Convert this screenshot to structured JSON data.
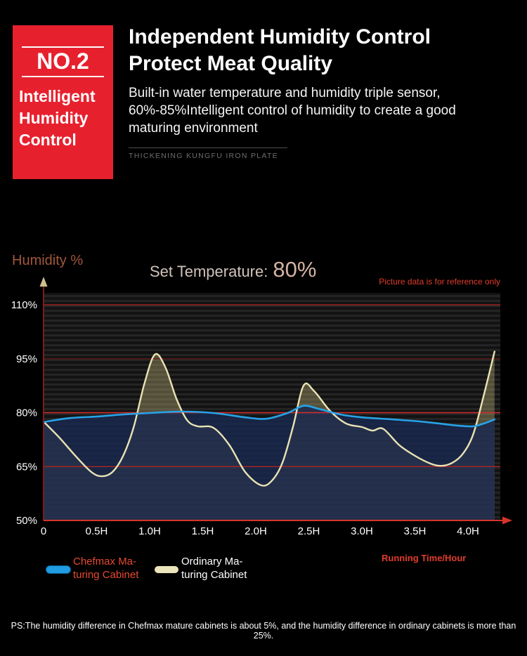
{
  "badge": {
    "number": "NO.2",
    "title_lines": [
      "Intelligent",
      "Humidity",
      "Control"
    ],
    "color": "#e7202e"
  },
  "header": {
    "title_line1": "Independent Humidity Control",
    "title_line2": "Protect Meat Quality",
    "body_lines": [
      "Built-in water temperature and humidity triple sensor,",
      "60%-85%Intelligent control of humidity to create a good",
      "maturing environment"
    ],
    "caption": "THICKENING KUNGFU IRON PLATE"
  },
  "chart_labels": {
    "y_axis_title": "Humidity %",
    "set_temp_label": "Set Temperature:",
    "set_temp_value": "80%",
    "disclaimer": "Picture data is for reference only",
    "x_axis_title": "Running Time/Hour"
  },
  "legend": {
    "chefmax_line1": "Chefmax Ma-",
    "chefmax_line2": "turing Cabinet",
    "ordinary_line1": "Ordinary Ma-",
    "ordinary_line2": "turing Cabinet"
  },
  "footnote": "PS:The humidity difference in Chefmax mature cabinets is about 5%, and the humidity difference in ordinary cabinets is more than 25%.",
  "chart_data": {
    "type": "line",
    "title": "Set Temperature: 80%",
    "xlabel": "Running Time/Hour",
    "ylabel": "Humidity %",
    "xlim": [
      0,
      4.3
    ],
    "ylim": [
      50,
      115
    ],
    "grid": "horizontal red lines over dark striped background",
    "legend_position": "bottom",
    "yticks": [
      {
        "value": 110,
        "label": "110%"
      },
      {
        "value": 95,
        "label": "95%"
      },
      {
        "value": 80,
        "label": "80%"
      },
      {
        "value": 65,
        "label": "65%"
      },
      {
        "value": 50,
        "label": "50%"
      }
    ],
    "xticks": [
      {
        "value": 0,
        "label": "0"
      },
      {
        "value": 0.5,
        "label": "0.5H"
      },
      {
        "value": 1,
        "label": "1.0H"
      },
      {
        "value": 1.5,
        "label": "1.5H"
      },
      {
        "value": 2,
        "label": "2.0H"
      },
      {
        "value": 2.5,
        "label": "2.5H"
      },
      {
        "value": 3,
        "label": "3.0H"
      },
      {
        "value": 3.5,
        "label": "3.5H"
      },
      {
        "value": 4,
        "label": "4.0H"
      }
    ],
    "gridlines": [
      {
        "value": 110,
        "color": "#9e2323",
        "width": 1.4
      },
      {
        "value": 95,
        "color": "#711919",
        "width": 1.2
      },
      {
        "value": 80,
        "color": "#d92b2b",
        "width": 1.6
      },
      {
        "value": 65,
        "color": "#b22424",
        "width": 1.4
      }
    ],
    "colors": {
      "x_axis": "#d5342b",
      "y_axis": "#7d1d1d",
      "y_axis_arrow": "#cfc08a",
      "tick_text": "#ffffff"
    },
    "series": [
      {
        "id": "chefmax",
        "name": "Chefmax Maturing Cabinet",
        "color": "#27a3e8",
        "fill": "rgba(24,40,78,0.82)",
        "points": [
          [
            0,
            77.4
          ],
          [
            0.25,
            78.5
          ],
          [
            0.5,
            78.9
          ],
          [
            0.75,
            79.5
          ],
          [
            1,
            79.9
          ],
          [
            1.3,
            80.3
          ],
          [
            1.6,
            79.9
          ],
          [
            1.9,
            78.7
          ],
          [
            2.1,
            78.3
          ],
          [
            2.3,
            79.9
          ],
          [
            2.45,
            81.9
          ],
          [
            2.6,
            81
          ],
          [
            2.8,
            79.5
          ],
          [
            3,
            78.7
          ],
          [
            3.3,
            78.1
          ],
          [
            3.6,
            77.4
          ],
          [
            3.9,
            76.4
          ],
          [
            4.05,
            76.2
          ],
          [
            4.15,
            77
          ],
          [
            4.25,
            78.1
          ]
        ]
      },
      {
        "id": "ordinary",
        "name": "Ordinary Maturing Cabinet",
        "color": "#e9e2b4",
        "fill": "rgba(190,180,120,0.38)",
        "points": [
          [
            0,
            77.5
          ],
          [
            0.15,
            73
          ],
          [
            0.3,
            68
          ],
          [
            0.45,
            63.5
          ],
          [
            0.55,
            62.3
          ],
          [
            0.65,
            63.5
          ],
          [
            0.75,
            68
          ],
          [
            0.85,
            76
          ],
          [
            0.95,
            88
          ],
          [
            1.05,
            96.2
          ],
          [
            1.15,
            92.5
          ],
          [
            1.25,
            84
          ],
          [
            1.35,
            78
          ],
          [
            1.45,
            76.2
          ],
          [
            1.6,
            75.8
          ],
          [
            1.75,
            71
          ],
          [
            1.9,
            63.5
          ],
          [
            2.05,
            59.8
          ],
          [
            2.15,
            61
          ],
          [
            2.25,
            66
          ],
          [
            2.35,
            76
          ],
          [
            2.45,
            87.5
          ],
          [
            2.55,
            86
          ],
          [
            2.7,
            80.5
          ],
          [
            2.85,
            77
          ],
          [
            3,
            76
          ],
          [
            3.1,
            75
          ],
          [
            3.2,
            75.5
          ],
          [
            3.35,
            71
          ],
          [
            3.5,
            68
          ],
          [
            3.65,
            65.8
          ],
          [
            3.75,
            65.2
          ],
          [
            3.85,
            66
          ],
          [
            3.95,
            68.5
          ],
          [
            4.05,
            74
          ],
          [
            4.15,
            85
          ],
          [
            4.25,
            97
          ]
        ]
      }
    ]
  }
}
